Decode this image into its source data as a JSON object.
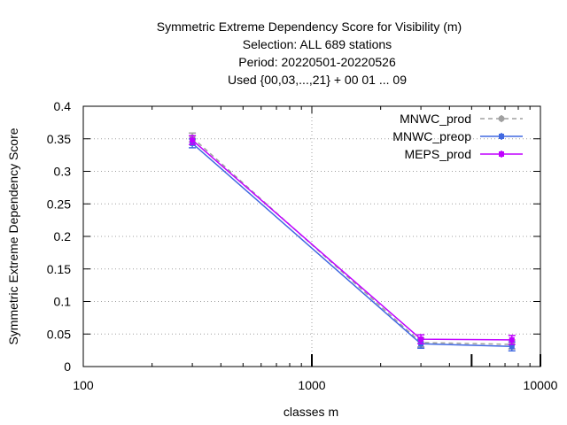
{
  "chart_data": {
    "type": "line",
    "title_lines": [
      "Symmetric Extreme Dependency Score  for Visibility (m)",
      "Selection: ALL    689 stations",
      "Period: 20220501-20220526",
      "Used {00,03,...,21} + 00 01 ... 09"
    ],
    "xlabel": "classes m",
    "ylabel": "Symmetric Extreme Dependency Score",
    "xscale": "log",
    "xlim": [
      100,
      10000
    ],
    "ylim": [
      0,
      0.4
    ],
    "x_ticks": [
      100,
      1000,
      10000
    ],
    "x_tick_labels": [
      "100",
      "1000",
      "10000"
    ],
    "y_ticks": [
      0,
      0.05,
      0.1,
      0.15,
      0.2,
      0.25,
      0.3,
      0.35,
      0.4
    ],
    "y_tick_labels": [
      "0",
      "0.05",
      "0.1",
      "0.15",
      "0.2",
      "0.25",
      "0.3",
      "0.35",
      "0.4"
    ],
    "x_minor_ticks": [
      200,
      300,
      400,
      500,
      600,
      700,
      800,
      900,
      2000,
      3000,
      4000,
      5000,
      6000,
      7000,
      8000,
      9000
    ],
    "grid": true,
    "legend_position": "top-right",
    "bottom_markers": [
      1000,
      5000,
      10000
    ],
    "series": [
      {
        "name": "MNWC_prod",
        "color": "#a0a0a0",
        "dash": "dashed",
        "marker": "circle",
        "x": [
          300,
          3000,
          7500
        ],
        "y": [
          0.352,
          0.037,
          0.034
        ]
      },
      {
        "name": "MNWC_preop",
        "color": "#4169e1",
        "dash": "solid",
        "marker": "square",
        "x": [
          300,
          3000,
          7500
        ],
        "y": [
          0.343,
          0.035,
          0.031
        ]
      },
      {
        "name": "MEPS_prod",
        "color": "#c000ff",
        "dash": "solid",
        "marker": "square",
        "x": [
          300,
          3000,
          7500
        ],
        "y": [
          0.348,
          0.042,
          0.041
        ]
      }
    ]
  }
}
